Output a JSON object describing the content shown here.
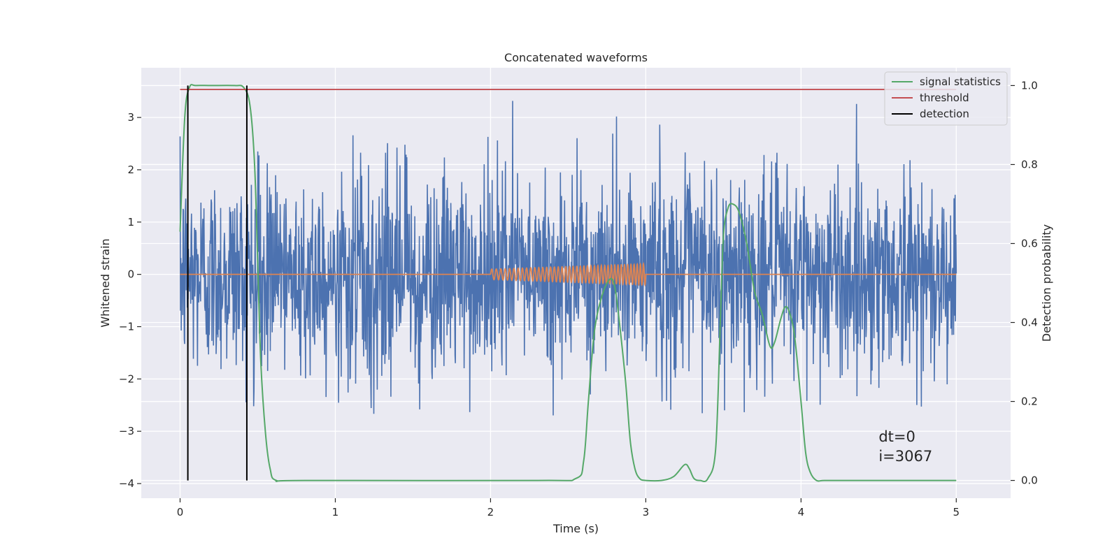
{
  "chart_data": {
    "type": "line",
    "title": "Concatenated waveforms",
    "xlabel": "Time (s)",
    "ylabel": "Whitened strain",
    "ylabel_right": "Detection probability",
    "xlim": [
      -0.25,
      5.35
    ],
    "ylim": [
      -4.28,
      3.95
    ],
    "ylim_right": [
      -0.045,
      1.045
    ],
    "xticks": [
      0,
      1,
      2,
      3,
      4,
      5
    ],
    "yticks": [
      -4,
      -3,
      -2,
      -1,
      0,
      1,
      2,
      3
    ],
    "yticks_right": [
      0.0,
      0.2,
      0.4,
      0.6,
      0.8,
      1.0
    ],
    "xtick_labels": [
      "0",
      "1",
      "2",
      "3",
      "4",
      "5"
    ],
    "ytick_labels": [
      "−4",
      "−3",
      "−2",
      "−1",
      "0",
      "1",
      "2",
      "3"
    ],
    "ytick_right_labels": [
      "0.0",
      "0.2",
      "0.4",
      "0.6",
      "0.8",
      "1.0"
    ],
    "grid": true,
    "legend_position": "top-right",
    "series": [
      {
        "name": "",
        "axis": "left",
        "color": "#4c72b0",
        "kind": "noise",
        "x_range": [
          0,
          5
        ],
        "samples": 2048,
        "envelope": [
          -2.7,
          3.6
        ]
      },
      {
        "name": "",
        "axis": "left",
        "color": "#dd8452",
        "kind": "chirp",
        "x_range": [
          0,
          5
        ],
        "chirp_range": [
          2.0,
          3.0
        ],
        "amplitude_range": [
          0.1,
          0.2
        ],
        "cycles": 42
      },
      {
        "name": "signal statistics",
        "axis": "right",
        "color": "#55a868",
        "x": [
          0,
          0.03,
          0.06,
          0.1,
          0.2,
          0.35,
          0.41,
          0.45,
          0.48,
          0.5,
          0.52,
          0.55,
          0.58,
          0.62,
          0.8,
          2.3,
          2.55,
          2.6,
          2.63,
          2.67,
          2.72,
          2.77,
          2.8,
          2.83,
          2.87,
          2.9,
          2.93,
          2.96,
          3.0,
          3.1,
          3.18,
          3.25,
          3.28,
          3.31,
          3.35,
          3.4,
          3.45,
          3.48,
          3.5,
          3.53,
          3.56,
          3.6,
          3.65,
          3.7,
          3.75,
          3.8,
          3.83,
          3.87,
          3.9,
          3.93,
          3.96,
          4.0,
          4.03,
          4.06,
          4.1,
          4.15,
          4.3,
          5.0
        ],
        "y": [
          0.63,
          0.92,
          0.995,
          1.0,
          1.0,
          1.0,
          0.995,
          0.95,
          0.8,
          0.55,
          0.3,
          0.12,
          0.03,
          0.0,
          0.0,
          0.0,
          0.005,
          0.05,
          0.2,
          0.38,
          0.47,
          0.51,
          0.49,
          0.4,
          0.25,
          0.1,
          0.03,
          0.005,
          0.0,
          0.0,
          0.01,
          0.04,
          0.03,
          0.005,
          0.0,
          0.005,
          0.08,
          0.4,
          0.62,
          0.69,
          0.7,
          0.68,
          0.6,
          0.48,
          0.42,
          0.34,
          0.35,
          0.41,
          0.44,
          0.42,
          0.36,
          0.2,
          0.07,
          0.02,
          0.0,
          0.0,
          0.0,
          0.0
        ]
      },
      {
        "name": "threshold",
        "axis": "right",
        "color": "#c44e52",
        "x": [
          0,
          5
        ],
        "y": [
          0.99,
          0.99
        ]
      },
      {
        "name": "detection",
        "axis": "right",
        "color": "#000000",
        "kind": "vlines",
        "x": [
          0.05,
          0.43
        ],
        "y_range": [
          0.0,
          1.0
        ]
      }
    ],
    "annotations": [
      "dt=0",
      "i=3067"
    ]
  }
}
